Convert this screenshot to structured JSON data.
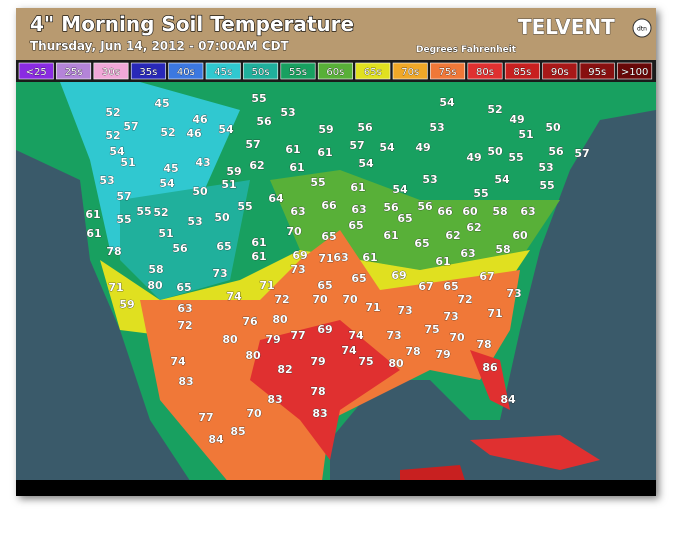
{
  "header": {
    "title": "4\" Morning Soil Temperature",
    "subtitle": "Thursday, Jun 14, 2012 - 07:00AM CDT",
    "brand": "TELVENT",
    "brand_mark": "dtn",
    "units": "Degrees Fahrenheit"
  },
  "legend": [
    {
      "label": "<25",
      "color": "#8a2be2"
    },
    {
      "label": "25s",
      "color": "#b484d8"
    },
    {
      "label": "30s",
      "color": "#f0a8d8"
    },
    {
      "label": "35s",
      "color": "#2828b8"
    },
    {
      "label": "40s",
      "color": "#3c78e0"
    },
    {
      "label": "45s",
      "color": "#30c8d0"
    },
    {
      "label": "50s",
      "color": "#20b09c"
    },
    {
      "label": "55s",
      "color": "#18a060"
    },
    {
      "label": "60s",
      "color": "#58b038"
    },
    {
      "label": "65s",
      "color": "#e0e020"
    },
    {
      "label": "70s",
      "color": "#f0a828"
    },
    {
      "label": "75s",
      "color": "#f07838"
    },
    {
      "label": "80s",
      "color": "#e03030"
    },
    {
      "label": "85s",
      "color": "#c82020"
    },
    {
      "label": "90s",
      "color": "#a81818"
    },
    {
      "label": "95s",
      "color": "#881010"
    },
    {
      "label": ">100",
      "color": "#680808"
    }
  ],
  "stations": [
    45,
    55,
    53,
    56,
    54,
    52,
    49,
    52,
    57,
    52,
    46,
    46,
    54,
    57,
    59,
    56,
    53,
    51,
    50,
    52,
    54,
    61,
    61,
    57,
    54,
    49,
    50,
    55,
    56,
    57,
    51,
    45,
    43,
    59,
    62,
    61,
    54,
    49,
    53,
    53,
    54,
    50,
    51,
    55,
    61,
    54,
    53,
    55,
    54,
    55,
    57,
    64,
    61,
    55,
    55,
    52,
    53,
    50,
    55,
    63,
    66,
    63,
    56,
    65,
    56,
    66,
    60,
    58,
    63,
    61,
    51,
    70,
    65,
    65,
    61,
    65,
    62,
    62,
    60,
    78,
    56,
    65,
    61,
    73,
    71,
    63,
    61,
    61,
    61,
    63,
    58,
    58,
    73,
    69,
    69,
    67,
    71,
    80,
    65,
    71,
    65,
    65,
    67,
    65,
    59,
    63,
    74,
    72,
    70,
    70,
    71,
    72,
    73,
    72,
    76,
    80,
    69,
    73,
    73,
    71,
    80,
    79,
    77,
    74,
    73,
    75,
    70,
    78,
    74,
    78,
    79,
    74,
    80,
    79,
    75,
    80,
    86,
    82,
    83,
    78,
    83,
    84,
    83,
    77,
    70,
    85,
    84
  ]
}
